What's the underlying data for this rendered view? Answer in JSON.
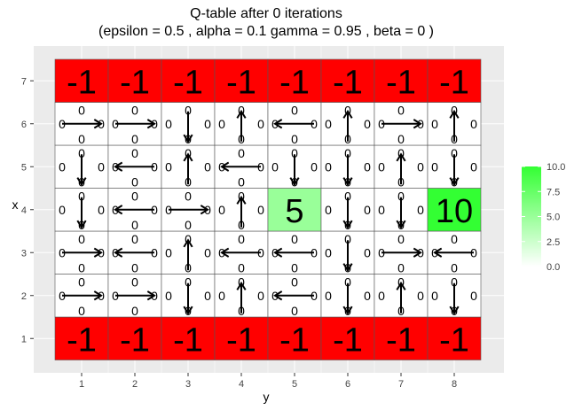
{
  "chart_data": {
    "type": "heatmap",
    "title": {
      "line1": "Q-table after  0  iterations",
      "line2": "(epsilon =  0.5 , alpha =  0.1 gamma =  0.95 , beta =  0  )"
    },
    "xlabel": "y",
    "ylabel": "x",
    "x_ticks": [
      "1",
      "2",
      "3",
      "4",
      "5",
      "6",
      "7",
      "8"
    ],
    "y_ticks": [
      "1",
      "2",
      "3",
      "4",
      "5",
      "6",
      "7"
    ],
    "xlim": [
      1,
      8
    ],
    "ylim": [
      1,
      7
    ],
    "grid": true,
    "legend": {
      "placement": "right",
      "range": [
        0,
        10
      ],
      "ticks": [
        "10.0",
        "7.5",
        "5.0",
        "2.5",
        "0.0"
      ],
      "colors": {
        "low": "#ffffff",
        "high": "#33ff33"
      }
    },
    "colors": {
      "penalty": "#ff0000",
      "goal_high": "#33ff33",
      "goal_mid": "#a8ff98",
      "panel_bg": "#ebebeb",
      "grid": "#ffffff",
      "border": "#555555"
    },
    "special_cells": [
      {
        "x": 4,
        "y": 5,
        "value": 5,
        "label": "5"
      },
      {
        "x": 4,
        "y": 8,
        "value": 10,
        "label": "10"
      }
    ],
    "penalty_rows": [
      1,
      7
    ],
    "penalty_label": "-1",
    "q_values": {
      "up": "0",
      "down": "0",
      "left": "0",
      "right": "0"
    },
    "arrows": {
      "6": [
        "right",
        "right",
        "down",
        "up",
        "left",
        "up",
        "right",
        "up"
      ],
      "5": [
        "down",
        "left",
        "up",
        "left",
        "down",
        "down",
        "up",
        "down"
      ],
      "4": [
        "down",
        "left",
        "right",
        "up",
        null,
        "down",
        "down",
        null
      ],
      "3": [
        "right",
        "left",
        "up",
        "left",
        "left",
        "down",
        "right",
        "left"
      ],
      "2": [
        "right",
        "right",
        "down",
        "up",
        "left",
        "down",
        "up",
        "down"
      ]
    }
  }
}
